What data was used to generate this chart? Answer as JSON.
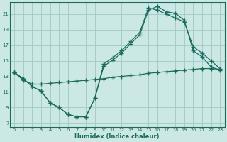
{
  "xlabel": "Humidex (Indice chaleur)",
  "bg_color": "#cce8e4",
  "grid_color": "#a0c8c4",
  "line_color": "#1a6b5e",
  "xlim": [
    -0.5,
    23.5
  ],
  "ylim": [
    6.5,
    22.5
  ],
  "xticks": [
    0,
    1,
    2,
    3,
    4,
    5,
    6,
    7,
    8,
    9,
    10,
    11,
    12,
    13,
    14,
    15,
    16,
    17,
    18,
    19,
    20,
    21,
    22,
    23
  ],
  "yticks": [
    7,
    9,
    11,
    13,
    15,
    17,
    19,
    21
  ],
  "line1_x": [
    0,
    1,
    2,
    3,
    4,
    5,
    6,
    7,
    8,
    9,
    10,
    11,
    12,
    13,
    14,
    15,
    16,
    17,
    18,
    19,
    20,
    21,
    22,
    23
  ],
  "line1_y": [
    13.5,
    12.7,
    11.7,
    11.1,
    9.6,
    9.0,
    8.1,
    7.8,
    7.8,
    10.2,
    14.3,
    15.1,
    16.0,
    17.2,
    18.3,
    21.5,
    22.0,
    21.3,
    21.1,
    20.2,
    16.3,
    15.5,
    14.2,
    13.8
  ],
  "line2_x": [
    0,
    1,
    2,
    3,
    4,
    5,
    6,
    7,
    8,
    9,
    10,
    11,
    12,
    13,
    14,
    15,
    16,
    17,
    18,
    19,
    20,
    21,
    22,
    23
  ],
  "line2_y": [
    13.5,
    12.7,
    11.7,
    11.1,
    9.6,
    9.0,
    8.1,
    7.8,
    7.8,
    10.2,
    14.6,
    15.4,
    16.3,
    17.5,
    18.6,
    21.8,
    21.5,
    21.0,
    20.5,
    20.0,
    16.8,
    16.0,
    15.0,
    14.0
  ],
  "line3_x": [
    0,
    1,
    2,
    3,
    4,
    5,
    6,
    7,
    8,
    9,
    10,
    11,
    12,
    13,
    14,
    15,
    16,
    17,
    18,
    19,
    20,
    21,
    22,
    23
  ],
  "line3_y": [
    13.5,
    12.5,
    12.0,
    12.0,
    12.1,
    12.2,
    12.3,
    12.4,
    12.5,
    12.6,
    12.7,
    12.9,
    13.0,
    13.1,
    13.2,
    13.4,
    13.5,
    13.6,
    13.7,
    13.8,
    13.9,
    14.0,
    14.0,
    13.9
  ]
}
